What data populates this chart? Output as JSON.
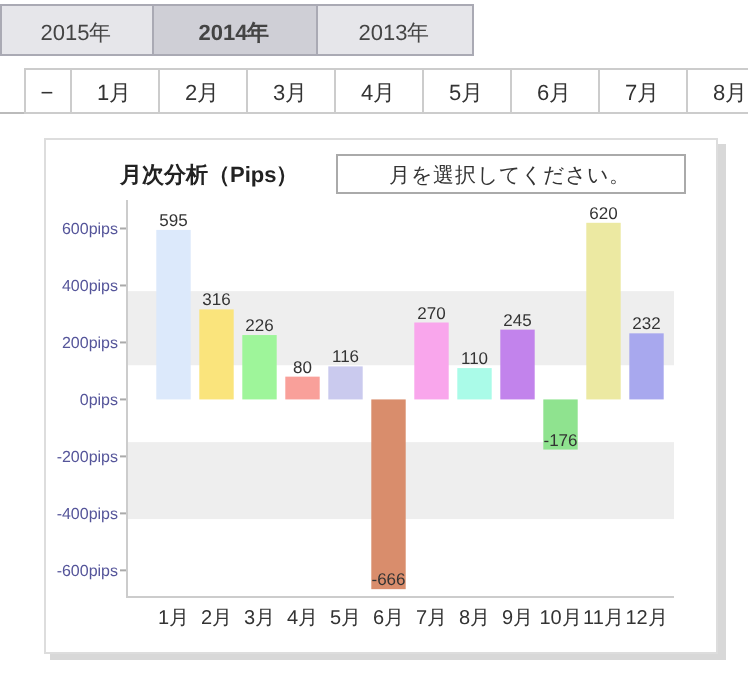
{
  "chart_data": {
    "type": "bar",
    "title": "月次分析（Pips）",
    "categories": [
      "1月",
      "2月",
      "3月",
      "4月",
      "5月",
      "6月",
      "7月",
      "8月",
      "9月",
      "10月",
      "11月",
      "12月"
    ],
    "values": [
      595,
      316,
      226,
      80,
      116,
      -666,
      270,
      110,
      245,
      -176,
      620,
      232
    ],
    "colors": [
      "#dce9fb",
      "#fae47c",
      "#9ef59a",
      "#f9a09a",
      "#cacaee",
      "#d98d6c",
      "#f9a6ec",
      "#aafbe8",
      "#c283ec",
      "#8fe38f",
      "#ece9a2",
      "#a8a8ee"
    ],
    "ylim": [
      -690,
      700
    ],
    "yticks": [
      {
        "value": 600,
        "label": "600pips"
      },
      {
        "value": 400,
        "label": "400pips"
      },
      {
        "value": 200,
        "label": "200pips"
      },
      {
        "value": 0,
        "label": "0pips"
      },
      {
        "value": -200,
        "label": "-200pips"
      },
      {
        "value": -400,
        "label": "-400pips"
      },
      {
        "value": -600,
        "label": "-600pips"
      }
    ],
    "bands": [
      {
        "axis": "y",
        "from": 120,
        "to": 380,
        "color": "#eeeeee"
      },
      {
        "axis": "y",
        "from": -420,
        "to": -150,
        "color": "#eeeeee"
      }
    ],
    "data_labels": true,
    "grid": false,
    "annotations": [
      "2015年",
      "2014年",
      "2013年",
      "−",
      "1月",
      "2月",
      "3月",
      "4月",
      "5月",
      "6月",
      "7月",
      "8月",
      "月を選択してください。"
    ]
  }
}
